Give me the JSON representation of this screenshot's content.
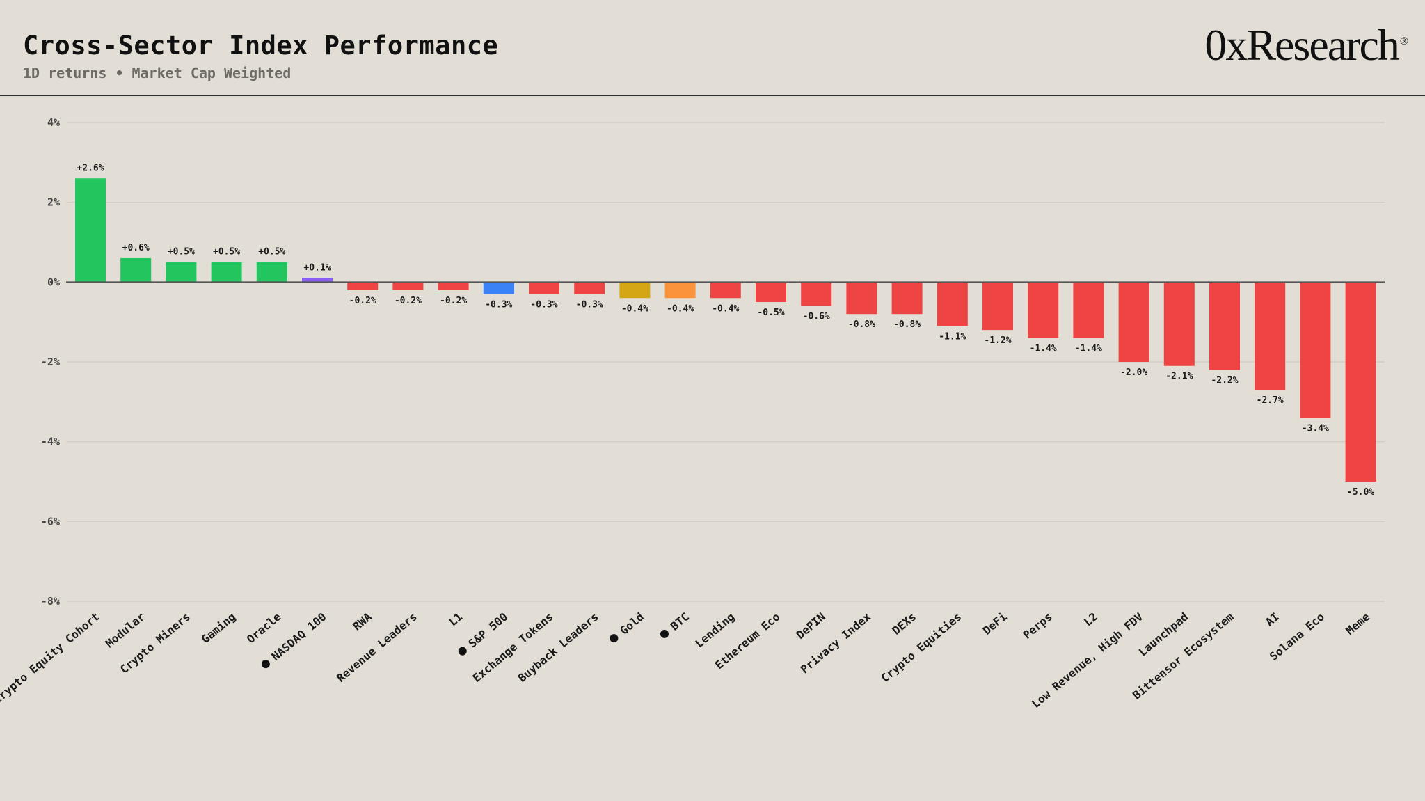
{
  "header": {
    "title": "Cross-Sector Index Performance",
    "subtitle": "1D returns • Market Cap Weighted",
    "logo_text": "0xResearch",
    "logo_mark": "®"
  },
  "colors": {
    "background": "#e2ded6",
    "positive": "#22c55e",
    "negative": "#ef4444",
    "nasdaq": "#8b5cf6",
    "sp500": "#3b82f6",
    "gold": "#d4a514",
    "btc": "#fb923c",
    "grid": "#cfcbc3",
    "zero_line": "#555555"
  },
  "chart_data": {
    "type": "bar",
    "title": "Cross-Sector Index Performance",
    "subtitle": "1D returns • Market Cap Weighted",
    "ylim": [
      -8,
      4
    ],
    "y_ticks": [
      4,
      2,
      0,
      -2,
      -4,
      -6,
      -8
    ],
    "y_tick_labels": [
      "4%",
      "2%",
      "0%",
      "-2%",
      "-4%",
      "-6%",
      "-8%"
    ],
    "grid": true,
    "categories": [
      "Crypto Equity Cohort",
      "Modular",
      "Crypto Miners",
      "Gaming",
      "Oracle",
      "NASDAQ 100",
      "RWA",
      "Revenue Leaders",
      "L1",
      "S&P 500",
      "Exchange Tokens",
      "Buyback Leaders",
      "Gold",
      "BTC",
      "Lending",
      "Ethereum Eco",
      "DePIN",
      "Privacy Index",
      "DEXs",
      "Crypto Equities",
      "DeFi",
      "Perps",
      "L2",
      "Low Revenue, High FDV",
      "Launchpad",
      "Bittensor Ecosystem",
      "AI",
      "Solana Eco",
      "Meme"
    ],
    "values": [
      2.6,
      0.6,
      0.5,
      0.5,
      0.5,
      0.1,
      -0.2,
      -0.2,
      -0.2,
      -0.3,
      -0.3,
      -0.3,
      -0.4,
      -0.4,
      -0.4,
      -0.5,
      -0.6,
      -0.8,
      -0.8,
      -1.1,
      -1.2,
      -1.4,
      -1.4,
      -2.0,
      -2.1,
      -2.2,
      -2.7,
      -3.4,
      -5.0
    ],
    "value_labels": [
      "+2.6%",
      "+0.6%",
      "+0.5%",
      "+0.5%",
      "+0.5%",
      "+0.1%",
      "-0.2%",
      "-0.2%",
      "-0.2%",
      "-0.3%",
      "-0.3%",
      "-0.3%",
      "-0.4%",
      "-0.4%",
      "-0.4%",
      "-0.5%",
      "-0.6%",
      "-0.8%",
      "-0.8%",
      "-1.1%",
      "-1.2%",
      "-1.4%",
      "-1.4%",
      "-2.0%",
      "-2.1%",
      "-2.2%",
      "-2.7%",
      "-3.4%",
      "-5.0%"
    ],
    "benchmarks": [
      "NASDAQ 100",
      "S&P 500",
      "Gold",
      "BTC"
    ],
    "bar_colors": [
      "#22c55e",
      "#22c55e",
      "#22c55e",
      "#22c55e",
      "#22c55e",
      "#8b5cf6",
      "#ef4444",
      "#ef4444",
      "#ef4444",
      "#3b82f6",
      "#ef4444",
      "#ef4444",
      "#d4a514",
      "#fb923c",
      "#ef4444",
      "#ef4444",
      "#ef4444",
      "#ef4444",
      "#ef4444",
      "#ef4444",
      "#ef4444",
      "#ef4444",
      "#ef4444",
      "#ef4444",
      "#ef4444",
      "#ef4444",
      "#ef4444",
      "#ef4444",
      "#ef4444"
    ]
  }
}
